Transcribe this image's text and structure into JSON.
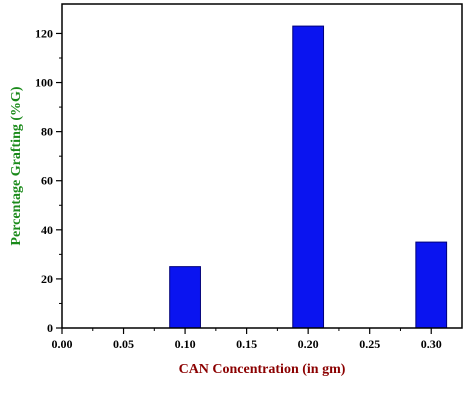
{
  "chart_data": {
    "type": "bar",
    "title": "",
    "xlabel": "CAN Concentration (in gm)",
    "ylabel": "Percentage Grafting (%G)",
    "x": [
      0.1,
      0.2,
      0.3
    ],
    "values": [
      25,
      123,
      35
    ],
    "bar_width": 0.025,
    "xlim": [
      0.0,
      0.325
    ],
    "ylim": [
      0,
      132
    ],
    "xticks": [
      "0.00",
      "0.05",
      "0.10",
      "0.15",
      "0.20",
      "0.25",
      "0.30"
    ],
    "yticks": [
      "0",
      "20",
      "40",
      "60",
      "80",
      "100",
      "120"
    ],
    "grid": false,
    "legend": "none",
    "colors": {
      "bar_fill": "#0a14f0",
      "bar_edge": "#00007a",
      "xlabel": "#8b0000",
      "ylabel": "#1a8a1a"
    }
  }
}
